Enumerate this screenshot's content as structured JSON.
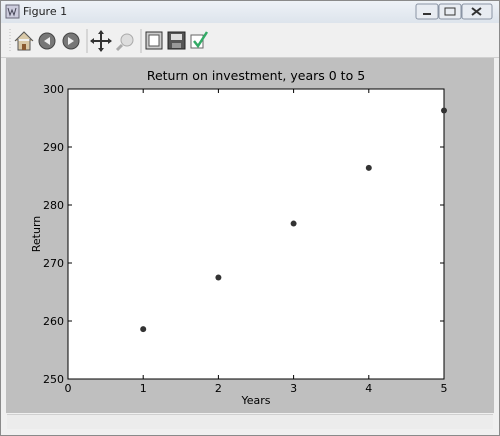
{
  "window": {
    "title": "Figure 1"
  },
  "chart_data": {
    "type": "scatter",
    "title": "Return on investment, years 0 to 5",
    "x_label": "Years",
    "y_label": "Return",
    "series": [
      {
        "color": "#333333",
        "x": [
          1,
          2,
          3,
          4,
          5
        ],
        "values": [
          258.6,
          267.5,
          276.8,
          286.4,
          296.3
        ]
      }
    ],
    "xlim": [
      0,
      5
    ],
    "xticks": [
      0,
      1,
      2,
      3,
      4,
      5
    ],
    "ylim": [
      250,
      300
    ],
    "yticks": [
      250,
      260,
      270,
      280,
      290,
      300
    ],
    "grid": false
  }
}
